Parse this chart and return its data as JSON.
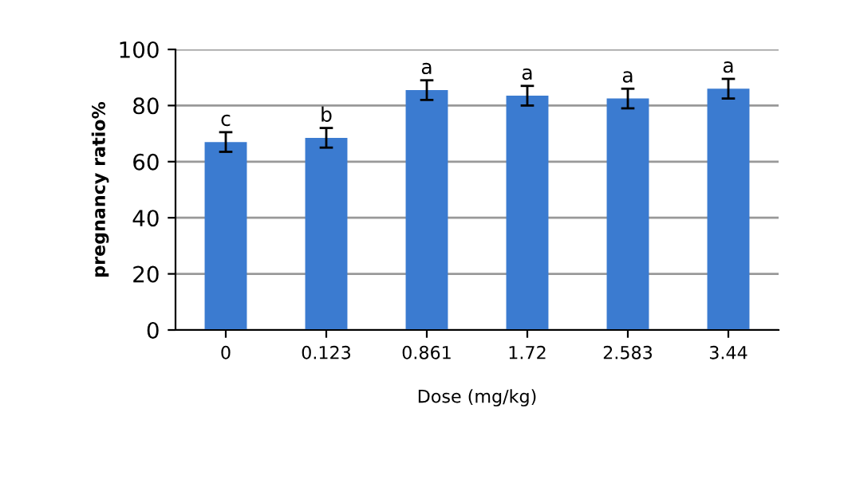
{
  "chart_data": {
    "type": "bar",
    "xlabel": "Dose (mg/kg)",
    "ylabel": "pregnancy ratio%",
    "categories": [
      "0",
      "0.123",
      "0.861",
      "1.72",
      "2.583",
      "3.44"
    ],
    "values": [
      67,
      68.5,
      85.5,
      83.5,
      82.5,
      86
    ],
    "errors": [
      3.5,
      3.5,
      3.5,
      3.5,
      3.5,
      3.5
    ],
    "color": "#3b7bd0",
    "ylim": [
      0,
      100
    ],
    "yticks": [
      0,
      20,
      40,
      60,
      80,
      100
    ],
    "grid": "y",
    "annotations": [
      {
        "text": "c",
        "x": "0",
        "y": 70.5
      },
      {
        "text": "b",
        "x": "0.123",
        "y": 72
      },
      {
        "text": "a",
        "x": "0.861",
        "y": 89
      },
      {
        "text": "a",
        "x": "1.72",
        "y": 87
      },
      {
        "text": "a",
        "x": "2.583",
        "y": 86
      },
      {
        "text": "a",
        "x": "3.44",
        "y": 89.5
      }
    ]
  }
}
